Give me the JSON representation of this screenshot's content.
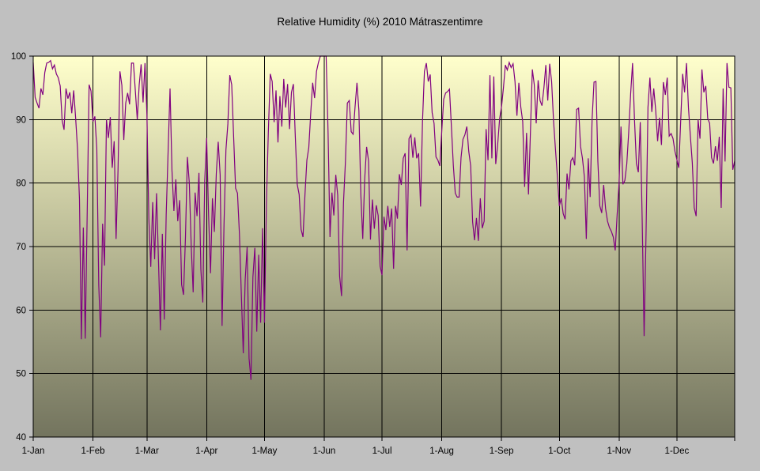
{
  "chart_data": {
    "type": "line",
    "title": "Relative Humidity (%) 2010 Mátraszentimre",
    "xlabel": "",
    "ylabel": "",
    "ylim": [
      40,
      100
    ],
    "y_ticks": [
      40,
      50,
      60,
      70,
      80,
      90,
      100
    ],
    "x_tick_labels": [
      "1-Jan",
      "1-Feb",
      "1-Mar",
      "1-Apr",
      "1-May",
      "1-Jun",
      "1-Jul",
      "1-Aug",
      "1-Sep",
      "1-Oct",
      "1-Nov",
      "1-Dec"
    ],
    "month_start_days": [
      1,
      32,
      60,
      91,
      121,
      152,
      182,
      213,
      244,
      274,
      305,
      335
    ],
    "grid": "both",
    "legend": "none",
    "x_unit": "day_of_year_2010",
    "series": [
      {
        "name": "Relative Humidity (%)",
        "color": "#800080",
        "values": [
          99,
          93.5,
          92.6,
          91.8,
          94.9,
          93.9,
          97.4,
          98.9,
          99,
          99.3,
          98,
          98.6,
          97.2,
          96.6,
          95.3,
          89.9,
          88.4,
          94.9,
          93.3,
          94.3,
          91,
          94.6,
          90.3,
          85.3,
          77.5,
          55.4,
          73,
          55.5,
          75,
          95.5,
          94.5,
          89.7,
          90.5,
          85.4,
          64,
          55.7,
          73.6,
          67,
          90,
          87.1,
          90.4,
          82.4,
          86.6,
          71.2,
          82,
          97.6,
          95.4,
          86.8,
          92.6,
          94.2,
          92.4,
          98.9,
          98.9,
          94.5,
          90,
          95.5,
          98.7,
          92.7,
          98.9,
          90.8,
          74.4,
          66.8,
          77,
          68,
          78.4,
          67.8,
          56.8,
          72,
          58.5,
          75,
          85,
          94.9,
          82,
          75.6,
          80.6,
          74,
          77.3,
          64,
          62.4,
          71.5,
          84.1,
          80,
          70,
          62.8,
          78.5,
          74.8,
          81.6,
          66.4,
          61.2,
          80.4,
          87.1,
          74.9,
          65.8,
          77.6,
          72.3,
          81.5,
          86.5,
          81.3,
          57.5,
          73.4,
          85.2,
          89.3,
          97,
          95.5,
          87.3,
          79.2,
          78.4,
          72,
          62.4,
          53.2,
          64.8,
          69.9,
          52.4,
          49,
          65.2,
          69.8,
          56.6,
          68.7,
          58,
          72.9,
          58,
          76.7,
          88,
          97.2,
          96,
          89.6,
          94.6,
          86.4,
          93.7,
          88.9,
          96.4,
          91.9,
          95.6,
          88.5,
          94.3,
          95.6,
          87.3,
          79.8,
          78.2,
          72.7,
          71.5,
          78.1,
          83.6,
          85.6,
          91,
          95.8,
          93.4,
          97.6,
          99,
          100,
          100,
          100,
          100,
          88,
          71.5,
          78.5,
          74.9,
          81.3,
          78.1,
          65.3,
          62.2,
          76.9,
          83.3,
          92.6,
          93,
          88.1,
          87.7,
          92,
          95.8,
          91.4,
          78.2,
          71.2,
          80.6,
          85.7,
          83.5,
          71.1,
          77.4,
          72.8,
          76.5,
          74.9,
          66.9,
          65.5,
          74.7,
          72.6,
          76.4,
          73.1,
          76,
          66.5,
          76.4,
          74.4,
          81.4,
          79.7,
          83.9,
          84.7,
          69.4,
          87,
          87.6,
          84,
          87.2,
          83.9,
          84.7,
          76.3,
          89.7,
          97.6,
          98.9,
          96,
          97.1,
          91.1,
          89.4,
          84.1,
          83.6,
          82.7,
          88.2,
          93.2,
          94.2,
          94.4,
          94.8,
          88.9,
          82.8,
          78.4,
          77.8,
          77.8,
          84,
          86.9,
          87.6,
          88.9,
          85,
          82.7,
          73.9,
          71,
          74.5,
          70.9,
          77.6,
          72.9,
          74,
          88.5,
          83.6,
          97,
          83.9,
          96.8,
          83,
          86,
          90.1,
          92,
          95,
          98.6,
          97.8,
          99,
          98.2,
          98.8,
          96,
          90.6,
          95.8,
          92,
          89.7,
          79.4,
          87.9,
          78.2,
          88,
          97.9,
          95.5,
          89.4,
          96.2,
          93,
          92.2,
          95,
          98.6,
          93,
          98.8,
          96,
          89.8,
          85.3,
          81,
          76.4,
          77.6,
          75.2,
          74.3,
          81.5,
          79,
          83.5,
          84,
          82.8,
          91.6,
          91.8,
          85.8,
          83.9,
          81,
          71.2,
          83.9,
          77.8,
          90,
          95.9,
          96,
          83.4,
          76.4,
          75.3,
          79.7,
          76,
          74,
          73,
          72.4,
          71.5,
          69.4,
          75,
          80,
          88.9,
          79.8,
          80.4,
          83,
          88,
          94,
          98.9,
          90,
          83.1,
          81.7,
          89.6,
          74.2,
          55.9,
          72,
          91.9,
          96.6,
          91.2,
          94.9,
          91.5,
          86.6,
          90.3,
          86,
          95.9,
          93.9,
          96.6,
          87.4,
          87.8,
          87,
          85,
          83.7,
          82.4,
          90,
          97.2,
          94.3,
          98.9,
          91.9,
          87.4,
          83.2,
          76.1,
          74.8,
          90,
          87,
          97.9,
          94.3,
          95.3,
          90.2,
          89.4,
          84,
          83.1,
          85.8,
          83.5,
          87.3,
          76.1,
          94.9,
          83.4,
          98.9,
          95.1,
          95,
          82.1,
          83.5
        ]
      }
    ],
    "colors": {
      "outer_background": "#c0c0c0",
      "plot_gradient_top": "#ffffcc",
      "plot_gradient_bottom": "#73745e",
      "gridline": "#000000",
      "plot_border": "#000000",
      "line": "#800080",
      "text": "#000000"
    }
  }
}
